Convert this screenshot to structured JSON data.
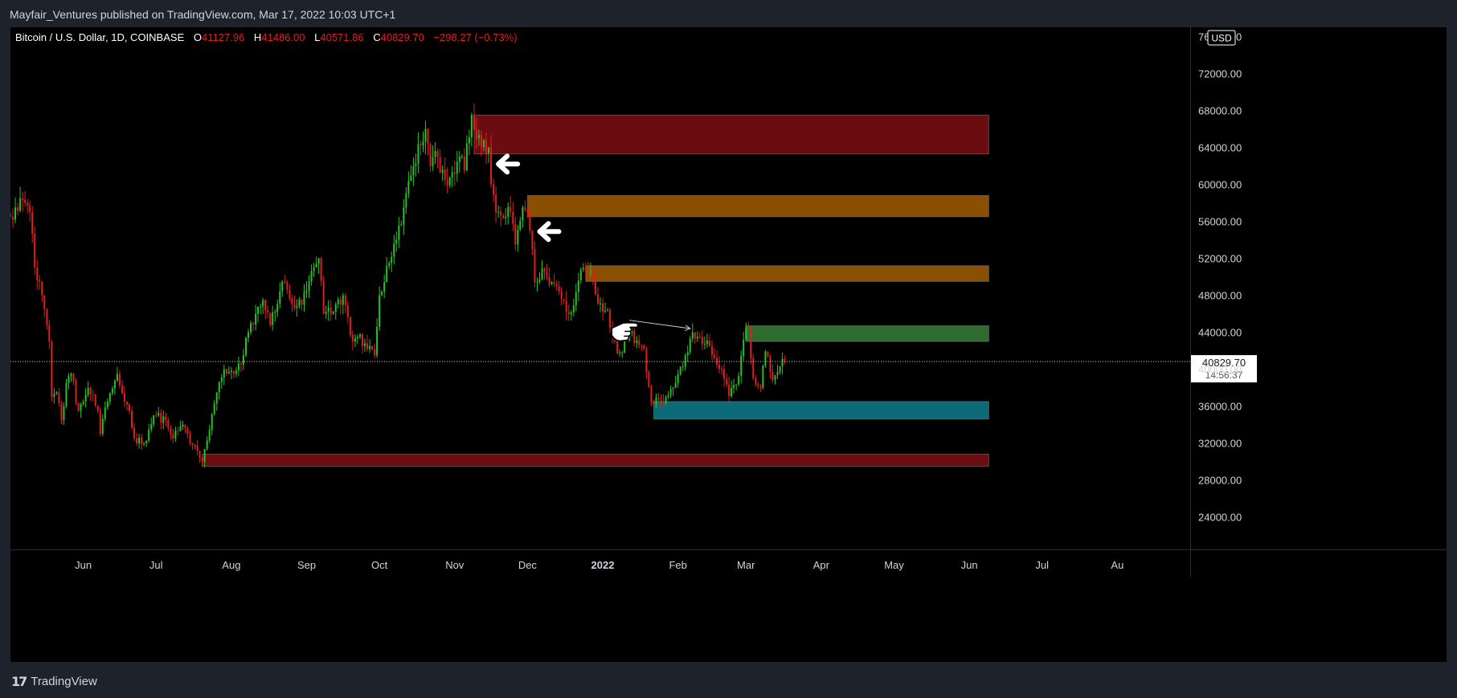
{
  "header": {
    "published_text": "Mayfair_Ventures published on TradingView.com, Mar 17, 2022 10:03 UTC+1"
  },
  "footer": {
    "brand_label": "TradingView"
  },
  "colors": {
    "up": "#26c226",
    "down": "#e01e1e",
    "background": "#000000",
    "axis_text": "#d1d4dc"
  },
  "chart_data": {
    "type": "candlestick",
    "symbol_title": "Bitcoin / U.S. Dollar, 1D, COINBASE",
    "ohlc": {
      "o_label": "O",
      "o_value": "41127.96",
      "h_label": "H",
      "h_value": "41486.00",
      "l_label": "L",
      "l_value": "40571.86",
      "c_label": "C",
      "c_value": "40829.70",
      "change": "−298.27 (−0.73%)"
    },
    "currency_label": "USD",
    "last_price": {
      "value": 40829.7,
      "label": "40829.70",
      "countdown": "14:56:37"
    },
    "y_axis": {
      "range": [
        20500,
        77000
      ],
      "ticks": [
        {
          "value": 76000,
          "label": "76000.00"
        },
        {
          "value": 72000,
          "label": "72000.00"
        },
        {
          "value": 68000,
          "label": "68000.00"
        },
        {
          "value": 64000,
          "label": "64000.00"
        },
        {
          "value": 60000,
          "label": "60000.00"
        },
        {
          "value": 56000,
          "label": "56000.00"
        },
        {
          "value": 52000,
          "label": "52000.00"
        },
        {
          "value": 48000,
          "label": "48000.00"
        },
        {
          "value": 44000,
          "label": "44000.00"
        },
        {
          "value": 40000,
          "label": "40000.00"
        },
        {
          "value": 36000,
          "label": "36000.00"
        },
        {
          "value": 32000,
          "label": "32000.00"
        },
        {
          "value": 28000,
          "label": "28000.00"
        },
        {
          "value": 24000,
          "label": "24000.00"
        }
      ]
    },
    "x_axis": {
      "range": [
        "2021-05-02",
        "2022-08-31"
      ],
      "ticks": [
        {
          "date": "2021-06-01",
          "label": "Jun"
        },
        {
          "date": "2021-07-01",
          "label": "Jul"
        },
        {
          "date": "2021-08-01",
          "label": "Aug"
        },
        {
          "date": "2021-09-01",
          "label": "Sep"
        },
        {
          "date": "2021-10-01",
          "label": "Oct"
        },
        {
          "date": "2021-11-01",
          "label": "Nov"
        },
        {
          "date": "2021-12-01",
          "label": "Dec"
        },
        {
          "date": "2022-01-01",
          "label": "2022",
          "bold": true
        },
        {
          "date": "2022-02-01",
          "label": "Feb"
        },
        {
          "date": "2022-03-01",
          "label": "Mar"
        },
        {
          "date": "2022-04-01",
          "label": "Apr"
        },
        {
          "date": "2022-05-01",
          "label": "May"
        },
        {
          "date": "2022-06-01",
          "label": "Jun"
        },
        {
          "date": "2022-07-01",
          "label": "Jul"
        },
        {
          "date": "2022-08-01",
          "label": "Au"
        }
      ]
    },
    "zones": [
      {
        "start": "2021-11-09",
        "end": "2022-06-09",
        "top": 67500,
        "bottom": 63300,
        "color": "#6b0c10"
      },
      {
        "start": "2021-12-01",
        "end": "2022-06-09",
        "top": 58800,
        "bottom": 56500,
        "color": "#8a5000"
      },
      {
        "start": "2021-12-25",
        "end": "2022-06-09",
        "top": 51200,
        "bottom": 49500,
        "color": "#8a5000"
      },
      {
        "start": "2022-03-01",
        "end": "2022-06-09",
        "top": 44700,
        "bottom": 43000,
        "color": "#2e6b2e"
      },
      {
        "start": "2022-01-22",
        "end": "2022-06-09",
        "top": 36500,
        "bottom": 34600,
        "color": "#0b6a78"
      },
      {
        "start": "2021-07-20",
        "end": "2022-06-09",
        "top": 30800,
        "bottom": 29500,
        "color": "#6b0c10"
      }
    ],
    "annotations": [
      {
        "type": "arrow-left",
        "date": "2021-11-19",
        "price": 62200
      },
      {
        "type": "arrow-left",
        "date": "2021-12-06",
        "price": 54900
      },
      {
        "type": "pointing-hand",
        "date": "2022-01-09",
        "price": 44100
      },
      {
        "type": "thin-arrow",
        "from_date": "2022-01-12",
        "from_price": 45300,
        "to_date": "2022-02-06",
        "to_price": 44400
      }
    ],
    "waypoints": [
      [
        "2021-05-02",
        56500
      ],
      [
        "2021-05-04",
        57500
      ],
      [
        "2021-05-06",
        58500
      ],
      [
        "2021-05-08",
        58000
      ],
      [
        "2021-05-10",
        57000
      ],
      [
        "2021-05-12",
        51000
      ],
      [
        "2021-05-14",
        49500
      ],
      [
        "2021-05-16",
        46500
      ],
      [
        "2021-05-18",
        43000
      ],
      [
        "2021-05-19",
        37000
      ],
      [
        "2021-05-21",
        37500
      ],
      [
        "2021-05-23",
        34500
      ],
      [
        "2021-05-25",
        38500
      ],
      [
        "2021-05-27",
        39500
      ],
      [
        "2021-05-30",
        35500
      ],
      [
        "2021-06-01",
        36500
      ],
      [
        "2021-06-03",
        38000
      ],
      [
        "2021-06-07",
        35500
      ],
      [
        "2021-06-08",
        33000
      ],
      [
        "2021-06-11",
        36500
      ],
      [
        "2021-06-15",
        39500
      ],
      [
        "2021-06-18",
        36500
      ],
      [
        "2021-06-20",
        35500
      ],
      [
        "2021-06-22",
        32500
      ],
      [
        "2021-06-26",
        32000
      ],
      [
        "2021-06-30",
        35000
      ],
      [
        "2021-07-05",
        34500
      ],
      [
        "2021-07-08",
        32500
      ],
      [
        "2021-07-12",
        34000
      ],
      [
        "2021-07-16",
        31800
      ],
      [
        "2021-07-20",
        30000
      ],
      [
        "2021-07-22",
        32300
      ],
      [
        "2021-07-26",
        37500
      ],
      [
        "2021-07-29",
        40000
      ],
      [
        "2021-08-02",
        39500
      ],
      [
        "2021-08-05",
        40500
      ],
      [
        "2021-08-08",
        44000
      ],
      [
        "2021-08-11",
        46000
      ],
      [
        "2021-08-14",
        47500
      ],
      [
        "2021-08-17",
        44800
      ],
      [
        "2021-08-22",
        49500
      ],
      [
        "2021-08-26",
        47000
      ],
      [
        "2021-08-30",
        47000
      ],
      [
        "2021-09-02",
        49500
      ],
      [
        "2021-09-06",
        52000
      ],
      [
        "2021-09-08",
        46000
      ],
      [
        "2021-09-12",
        46200
      ],
      [
        "2021-09-16",
        48000
      ],
      [
        "2021-09-20",
        43000
      ],
      [
        "2021-09-22",
        43500
      ],
      [
        "2021-09-25",
        42800
      ],
      [
        "2021-09-29",
        41500
      ],
      [
        "2021-10-01",
        48000
      ],
      [
        "2021-10-05",
        51500
      ],
      [
        "2021-10-08",
        54000
      ],
      [
        "2021-10-11",
        57500
      ],
      [
        "2021-10-15",
        62000
      ],
      [
        "2021-10-20",
        66000
      ],
      [
        "2021-10-22",
        62000
      ],
      [
        "2021-10-25",
        63000
      ],
      [
        "2021-10-28",
        60500
      ],
      [
        "2021-10-31",
        61300
      ],
      [
        "2021-11-03",
        63000
      ],
      [
        "2021-11-05",
        61500
      ],
      [
        "2021-11-08",
        67500
      ],
      [
        "2021-11-10",
        65000
      ],
      [
        "2021-11-12",
        64000
      ],
      [
        "2021-11-15",
        64000
      ],
      [
        "2021-11-16",
        60000
      ],
      [
        "2021-11-18",
        57000
      ],
      [
        "2021-11-22",
        56500
      ],
      [
        "2021-11-24",
        57000
      ],
      [
        "2021-11-26",
        53500
      ],
      [
        "2021-11-29",
        57500
      ],
      [
        "2021-12-01",
        57000
      ],
      [
        "2021-12-03",
        53000
      ],
      [
        "2021-12-04",
        49400
      ],
      [
        "2021-12-08",
        50500
      ],
      [
        "2021-12-11",
        49400
      ],
      [
        "2021-12-14",
        48400
      ],
      [
        "2021-12-17",
        46200
      ],
      [
        "2021-12-20",
        46900
      ],
      [
        "2021-12-23",
        50800
      ],
      [
        "2021-12-27",
        50700
      ],
      [
        "2021-12-30",
        47100
      ],
      [
        "2022-01-03",
        46400
      ],
      [
        "2022-01-05",
        43500
      ],
      [
        "2022-01-08",
        41800
      ],
      [
        "2022-01-12",
        43900
      ],
      [
        "2022-01-15",
        43100
      ],
      [
        "2022-01-18",
        42200
      ],
      [
        "2022-01-21",
        36500
      ],
      [
        "2022-01-24",
        36700
      ],
      [
        "2022-01-27",
        37000
      ],
      [
        "2022-01-31",
        38500
      ],
      [
        "2022-02-04",
        41500
      ],
      [
        "2022-02-07",
        44000
      ],
      [
        "2022-02-10",
        43500
      ],
      [
        "2022-02-14",
        42500
      ],
      [
        "2022-02-17",
        40500
      ],
      [
        "2022-02-19",
        40000
      ],
      [
        "2022-02-22",
        37100
      ],
      [
        "2022-02-24",
        38300
      ],
      [
        "2022-02-26",
        39300
      ],
      [
        "2022-02-28",
        43200
      ],
      [
        "2022-03-02",
        44400
      ],
      [
        "2022-03-04",
        39000
      ],
      [
        "2022-03-07",
        38000
      ],
      [
        "2022-03-09",
        41900
      ],
      [
        "2022-03-12",
        38800
      ],
      [
        "2022-03-14",
        39700
      ],
      [
        "2022-03-16",
        41127.96
      ],
      [
        "2022-03-17",
        40829.7
      ]
    ]
  }
}
